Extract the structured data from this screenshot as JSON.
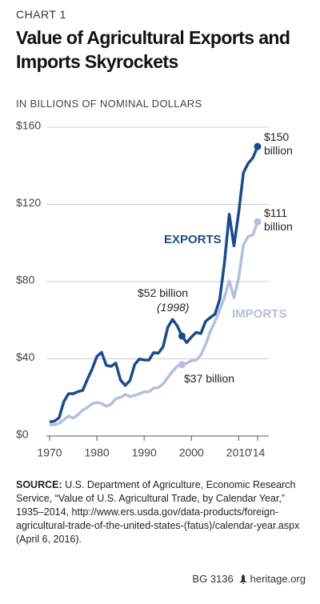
{
  "chart_data": {
    "type": "line",
    "kicker": "CHART 1",
    "title": "Value of Agricultural Exports and Imports Skyrockets",
    "y_axis_label": "IN BILLIONS OF NOMINAL DOLLARS",
    "x": [
      1970,
      1971,
      1972,
      1973,
      1974,
      1975,
      1976,
      1977,
      1978,
      1979,
      1980,
      1981,
      1982,
      1983,
      1984,
      1985,
      1986,
      1987,
      1988,
      1989,
      1990,
      1991,
      1992,
      1993,
      1994,
      1995,
      1996,
      1997,
      1998,
      1999,
      2000,
      2001,
      2002,
      2003,
      2004,
      2005,
      2006,
      2007,
      2008,
      2009,
      2010,
      2011,
      2012,
      2013,
      2014
    ],
    "series": [
      {
        "name": "EXPORTS",
        "color": "#1b4a8c",
        "values": [
          7.3,
          7.7,
          9.4,
          17.7,
          21.9,
          21.9,
          23.0,
          23.6,
          29.4,
          34.7,
          41.2,
          43.3,
          36.6,
          36.1,
          37.8,
          29.0,
          26.2,
          28.7,
          37.1,
          39.9,
          39.4,
          39.3,
          43.2,
          42.9,
          46.2,
          56.3,
          60.4,
          57.1,
          51.8,
          48.4,
          51.3,
          53.7,
          53.1,
          59.4,
          61.4,
          63.2,
          70.9,
          90.0,
          114.9,
          98.5,
          115.8,
          136.4,
          141.3,
          144.1,
          150
        ]
      },
      {
        "name": "IMPORTS",
        "color": "#b5bedb",
        "values": [
          5.8,
          5.8,
          6.5,
          8.4,
          10.3,
          9.3,
          11.0,
          13.4,
          14.8,
          16.7,
          17.4,
          16.8,
          15.4,
          16.5,
          19.3,
          20.0,
          21.5,
          20.4,
          21.0,
          21.9,
          22.9,
          22.9,
          24.8,
          25.1,
          27.0,
          30.3,
          33.5,
          36.1,
          37.0,
          37.7,
          39.0,
          39.4,
          41.9,
          47.4,
          54.2,
          59.5,
          65.3,
          71.9,
          80.5,
          71.7,
          81.9,
          99.0,
          103.4,
          104.2,
          111
        ]
      }
    ],
    "xlim": [
      1970,
      2014
    ],
    "xticks": [
      1970,
      1980,
      1990,
      2000,
      2010,
      {
        "value": 2014,
        "label": "’14"
      }
    ],
    "ylim": [
      0,
      160
    ],
    "yticks": [
      {
        "value": 0,
        "label": "$0"
      },
      {
        "value": 40,
        "label": "$40"
      },
      {
        "value": 80,
        "label": "$80"
      },
      {
        "value": 120,
        "label": "$120"
      },
      {
        "value": 160,
        "label": "$160"
      }
    ],
    "grid": true,
    "annotations": [
      "$150 billion",
      "$111 billion",
      "$52 billion",
      "(1998)",
      "$37 billion"
    ]
  },
  "source": {
    "label": "SOURCE:",
    "text": "U.S. Department of Agriculture, Economic Research Service, “Value of U.S. Agricultural Trade, by Calendar Year,” 1935–2014, http://www.ers.usda.gov/data-products/foreign-agricultural-trade-of-the-united-states-(fatus)/calendar-year.aspx (April 6, 2016)."
  },
  "footer": {
    "id": "BG 3136",
    "site": "heritage.org"
  }
}
